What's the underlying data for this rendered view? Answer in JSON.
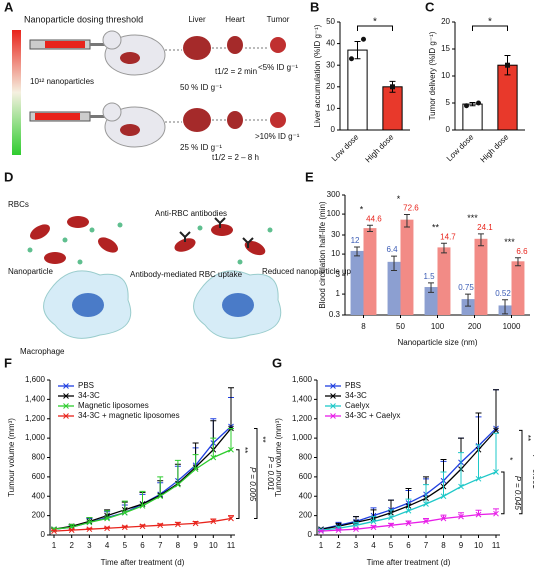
{
  "panel_labels": [
    "A",
    "B",
    "C",
    "D",
    "E",
    "F",
    "G"
  ],
  "diagrams": {
    "A": {
      "title": "Nanoparticle dosing threshold",
      "organs": [
        "Liver",
        "Heart",
        "Tumor"
      ],
      "dose": "10¹² nanoparticles",
      "low_liver": "50 % ID g⁻¹",
      "low_half_life": "t1/2 = 2 min",
      "low_tumor": "<5% ID g⁻¹",
      "high_liver": "25 % ID g⁻¹",
      "high_half_life": "t1/2 = 2 – 8 h",
      "high_tumor": ">10% ID g⁻¹"
    },
    "D": {
      "rbcs": "RBCs",
      "nanoparticle": "Nanoparticle",
      "macrophage": "Macrophage",
      "antibodies": "Anti-RBC antibodies",
      "uptake": "Antibody-mediated RBC uptake",
      "reduced": "Reduced nanoparticle uptake"
    }
  },
  "chart_data": [
    {
      "type": "bar",
      "ylabel": "Liver accumulation (%ID g⁻¹)",
      "categories": [
        "Low dose",
        "High dose"
      ],
      "values": [
        37,
        20
      ],
      "errors": [
        4,
        2.5
      ],
      "points": [
        [
          33,
          37,
          42
        ],
        [
          17,
          20,
          23
        ]
      ],
      "colors": [
        "#ffffff",
        "#e8392b"
      ],
      "ylim": [
        0,
        50
      ],
      "yticks": [
        0,
        10,
        20,
        30,
        40,
        50
      ],
      "significance": "*"
    },
    {
      "type": "bar",
      "ylabel": "Tumor delivery (%ID g⁻¹)",
      "categories": [
        "Low dose",
        "High dose"
      ],
      "values": [
        4.8,
        12
      ],
      "errors": [
        0.3,
        1.8
      ],
      "points": [
        [
          4.5,
          4.8,
          5.0
        ],
        [
          9.5,
          12,
          15
        ]
      ],
      "colors": [
        "#ffffff",
        "#e8392b"
      ],
      "ylim": [
        0,
        20
      ],
      "yticks": [
        0,
        5,
        10,
        15,
        20
      ],
      "significance": "*"
    },
    {
      "type": "bar",
      "ylabel": "Blood circulation half-life (min)",
      "xlabel": "Nanoparticle size (nm)",
      "categories": [
        "8",
        "50",
        "100",
        "200",
        "1000"
      ],
      "log_scale": true,
      "series": [
        {
          "color": "#8c9fd1",
          "label_color": "#3a5bb5",
          "values": [
            12,
            6.4,
            1.5,
            0.75,
            0.52
          ],
          "errors": [
            3,
            2.5,
            0.4,
            0.25,
            0.2
          ]
        },
        {
          "color": "#f28b86",
          "label_color": "#e8231b",
          "values": [
            44.6,
            72.6,
            14.7,
            24.1,
            6.6
          ],
          "errors": [
            8,
            25,
            4,
            8,
            1.5
          ]
        }
      ],
      "significance": [
        "*",
        "*",
        "**",
        "***",
        "***"
      ],
      "ylim": [
        0.3,
        300
      ],
      "yticks": [
        0.3,
        1,
        3,
        10,
        30,
        100,
        300
      ]
    },
    {
      "type": "line",
      "ylabel": "Tumour volume (mm³)",
      "xlabel": "Time after treatment (d)",
      "x": [
        1,
        2,
        3,
        4,
        5,
        6,
        7,
        8,
        9,
        10,
        11
      ],
      "legend": "upper-left",
      "series": [
        {
          "name": "PBS",
          "color": "#1f3fe0",
          "values": [
            60,
            80,
            130,
            180,
            230,
            320,
            420,
            560,
            720,
            950,
            1120
          ],
          "errors": [
            10,
            20,
            40,
            60,
            80,
            100,
            120,
            150,
            180,
            250,
            300
          ]
        },
        {
          "name": "34-3C",
          "color": "#000000",
          "values": [
            60,
            90,
            140,
            200,
            260,
            320,
            410,
            530,
            700,
            880,
            1100
          ],
          "errors": [
            10,
            20,
            40,
            60,
            80,
            120,
            150,
            200,
            250,
            300,
            420
          ]
        },
        {
          "name": "Magnetic liposomes",
          "color": "#2ecc2e",
          "values": [
            60,
            80,
            130,
            170,
            230,
            300,
            400,
            520,
            680,
            800,
            880
          ],
          "errors": [
            10,
            30,
            50,
            80,
            120,
            150,
            200,
            250,
            150,
            200,
            220
          ]
        },
        {
          "name": "34-3C + magnetic liposomes",
          "color": "#e8231b",
          "values": [
            40,
            50,
            60,
            70,
            80,
            90,
            100,
            110,
            120,
            140,
            170
          ],
          "errors": [
            5,
            8,
            10,
            10,
            12,
            15,
            15,
            20,
            20,
            25,
            30
          ]
        }
      ],
      "annotations": [
        "**",
        "P = 0.005",
        "**",
        "P = 0.001"
      ],
      "xlim": [
        1,
        11
      ],
      "xticks": [
        1,
        2,
        3,
        4,
        5,
        6,
        7,
        8,
        9,
        10,
        11
      ],
      "ylim": [
        0,
        1600
      ],
      "yticks": [
        0,
        200,
        400,
        600,
        800,
        {
          "value": 1000,
          "label": "1,000"
        },
        {
          "value": 1200,
          "label": "1,200"
        },
        {
          "value": 1400,
          "label": "1,400"
        },
        {
          "value": 1600,
          "label": "1,600"
        }
      ]
    },
    {
      "type": "line",
      "ylabel": "Tumour volume (mm³)",
      "xlabel": "Time after treatment (d)",
      "x": [
        1,
        2,
        3,
        4,
        5,
        6,
        7,
        8,
        9,
        10,
        11
      ],
      "legend": "upper-left",
      "series": [
        {
          "name": "PBS",
          "color": "#1f3fe0",
          "values": [
            60,
            100,
            140,
            200,
            260,
            330,
            420,
            560,
            750,
            920,
            1100
          ],
          "errors": [
            10,
            30,
            50,
            80,
            100,
            130,
            160,
            200,
            250,
            300,
            400
          ]
        },
        {
          "name": "34-3C",
          "color": "#000000",
          "values": [
            60,
            90,
            130,
            170,
            230,
            300,
            380,
            500,
            680,
            880,
            1080
          ],
          "errors": [
            10,
            30,
            60,
            90,
            130,
            180,
            220,
            280,
            320,
            380,
            420
          ]
        },
        {
          "name": "Caelyx",
          "color": "#1ec8c8",
          "values": [
            50,
            70,
            100,
            140,
            180,
            250,
            320,
            400,
            500,
            580,
            650
          ],
          "errors": [
            10,
            20,
            30,
            50,
            80,
            120,
            200,
            250,
            350,
            350,
            400
          ]
        },
        {
          "name": "34-3C + Caelyx",
          "color": "#e81ee8",
          "values": [
            40,
            50,
            60,
            80,
            100,
            120,
            140,
            170,
            190,
            210,
            220
          ],
          "errors": [
            5,
            10,
            10,
            15,
            20,
            25,
            30,
            35,
            40,
            45,
            50
          ]
        }
      ],
      "annotations": [
        "*",
        "P = 0.045",
        "**",
        "P = 0.001"
      ],
      "xlim": [
        1,
        11
      ],
      "xticks": [
        1,
        2,
        3,
        4,
        5,
        6,
        7,
        8,
        9,
        10,
        11
      ],
      "ylim": [
        0,
        1600
      ],
      "yticks": [
        0,
        200,
        400,
        600,
        800,
        {
          "value": 1000,
          "label": "1,000"
        },
        {
          "value": 1200,
          "label": "1,200"
        },
        {
          "value": 1400,
          "label": "1,400"
        },
        {
          "value": 1600,
          "label": "1,600"
        }
      ]
    }
  ]
}
